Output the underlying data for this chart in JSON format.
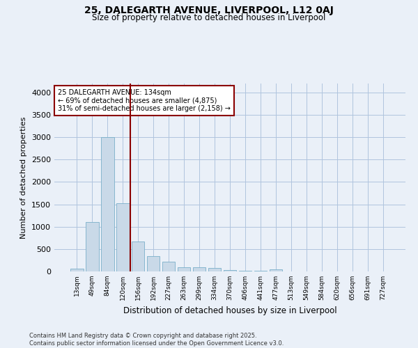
{
  "title": "25, DALEGARTH AVENUE, LIVERPOOL, L12 0AJ",
  "subtitle": "Size of property relative to detached houses in Liverpool",
  "xlabel": "Distribution of detached houses by size in Liverpool",
  "ylabel": "Number of detached properties",
  "categories": [
    "13sqm",
    "49sqm",
    "84sqm",
    "120sqm",
    "156sqm",
    "192sqm",
    "227sqm",
    "263sqm",
    "299sqm",
    "334sqm",
    "370sqm",
    "406sqm",
    "441sqm",
    "477sqm",
    "513sqm",
    "549sqm",
    "584sqm",
    "620sqm",
    "656sqm",
    "691sqm",
    "727sqm"
  ],
  "values": [
    55,
    1100,
    3000,
    1520,
    670,
    340,
    220,
    100,
    100,
    80,
    30,
    10,
    10,
    40,
    5,
    3,
    2,
    2,
    1,
    1,
    1
  ],
  "bar_color": "#c9d9e8",
  "bar_edge_color": "#7aafc9",
  "vline_index": 3,
  "vline_color": "#8b0000",
  "annotation_text": "25 DALEGARTH AVENUE: 134sqm\n← 69% of detached houses are smaller (4,875)\n31% of semi-detached houses are larger (2,158) →",
  "annotation_box_edge": "#8b0000",
  "annotation_box_face": "#ffffff",
  "ylim": [
    0,
    4200
  ],
  "yticks": [
    0,
    500,
    1000,
    1500,
    2000,
    2500,
    3000,
    3500,
    4000
  ],
  "grid_color": "#b0c4de",
  "bg_color": "#eaf0f8",
  "footer_line1": "Contains HM Land Registry data © Crown copyright and database right 2025.",
  "footer_line2": "Contains public sector information licensed under the Open Government Licence v3.0."
}
